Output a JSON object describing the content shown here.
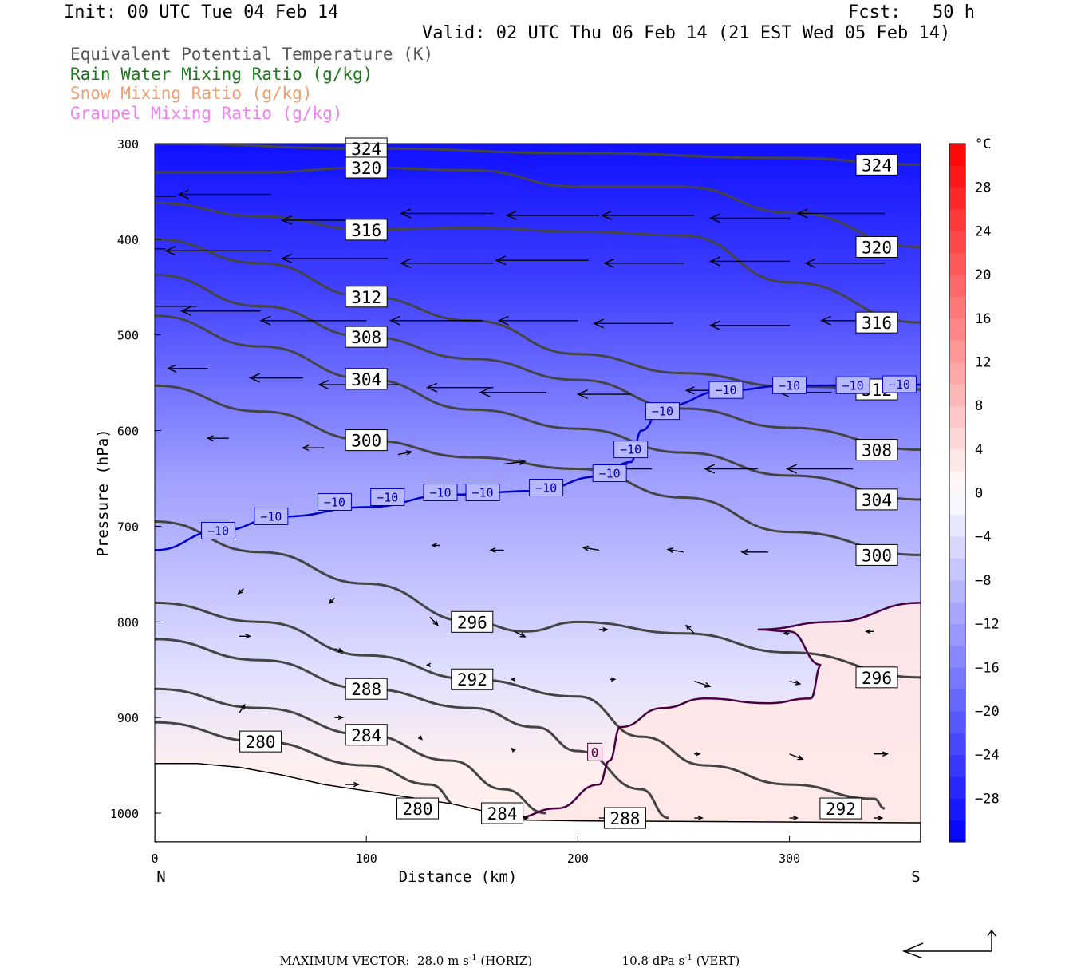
{
  "header": {
    "init": "Init: 00 UTC Tue 04 Feb 14",
    "fcst": "Fcst:   50 h",
    "valid": "Valid: 02 UTC Thu 06 Feb 14 (21 EST Wed 05 Feb 14)"
  },
  "legend": [
    {
      "label": "Equivalent Potential Temperature (K)",
      "color": "#555555"
    },
    {
      "label": "Rain Water Mixing Ratio (g/kg)",
      "color": "#1a7a1a"
    },
    {
      "label": "Snow Mixing Ratio (g/kg)",
      "color": "#f0a070"
    },
    {
      "label": "Graupel Mixing Ratio (g/kg)",
      "color": "#ee82ee"
    }
  ],
  "footer": {
    "max_vector_label": "MAXIMUM VECTOR:",
    "horiz_value": "28.0",
    "horiz_units": "m s",
    "horiz_tag": "(HORIZ)",
    "vert_value": "10.8",
    "vert_units": "dPa s",
    "vert_tag": "(VERT)",
    "exponent": "-1"
  },
  "chart_data": {
    "type": "cross-section",
    "xlabel": "Distance (km)",
    "ylabel": "Pressure (hPa)",
    "xlim": [
      0,
      362
    ],
    "ylim": [
      1030,
      300
    ],
    "x_ticks": [
      0,
      100,
      200,
      300
    ],
    "y_ticks": [
      300,
      400,
      500,
      600,
      700,
      800,
      900,
      1000
    ],
    "x_end_labels": {
      "left": "N",
      "right": "S"
    },
    "colorbar": {
      "unit": "°C",
      "ticks": [
        28,
        24,
        20,
        16,
        12,
        8,
        4,
        0,
        -4,
        -8,
        -12,
        -16,
        -20,
        -24,
        -28
      ],
      "range": [
        -32,
        32
      ],
      "colors": {
        "cold": "#0000ff",
        "neutral": "#ffffff",
        "warm": "#ff0000"
      }
    },
    "temperature_field": [
      {
        "p": 300,
        "t": -30
      },
      {
        "p": 450,
        "t": -24
      },
      {
        "p": 550,
        "t": -18
      },
      {
        "p": 650,
        "t": -12
      },
      {
        "p": 750,
        "t": -8
      },
      {
        "p": 850,
        "t": -4
      },
      {
        "p": 950,
        "t": 2
      }
    ],
    "theta_e_contours": [
      {
        "value": 324,
        "points": [
          [
            0,
            300
          ],
          [
            100,
            305
          ],
          [
            200,
            310
          ],
          [
            300,
            315
          ],
          [
            362,
            322
          ]
        ]
      },
      {
        "value": 320,
        "points": [
          [
            0,
            330
          ],
          [
            50,
            330
          ],
          [
            100,
            325
          ],
          [
            150,
            328
          ],
          [
            200,
            345
          ],
          [
            250,
            345
          ],
          [
            300,
            372
          ],
          [
            362,
            408
          ]
        ]
      },
      {
        "value": 316,
        "points": [
          [
            0,
            362
          ],
          [
            50,
            376
          ],
          [
            100,
            390
          ],
          [
            150,
            388
          ],
          [
            200,
            392
          ],
          [
            250,
            396
          ],
          [
            300,
            445
          ],
          [
            362,
            487
          ]
        ]
      },
      {
        "value": 312,
        "points": [
          [
            0,
            400
          ],
          [
            50,
            425
          ],
          [
            100,
            460
          ],
          [
            150,
            485
          ],
          [
            200,
            520
          ],
          [
            250,
            540
          ],
          [
            300,
            554
          ],
          [
            362,
            557
          ]
        ]
      },
      {
        "value": 308,
        "points": [
          [
            0,
            437
          ],
          [
            50,
            470
          ],
          [
            100,
            502
          ],
          [
            150,
            525
          ],
          [
            200,
            547
          ],
          [
            250,
            577
          ],
          [
            300,
            597
          ],
          [
            362,
            620
          ]
        ]
      },
      {
        "value": 304,
        "points": [
          [
            0,
            480
          ],
          [
            50,
            512
          ],
          [
            100,
            546
          ],
          [
            150,
            578
          ],
          [
            200,
            598
          ],
          [
            250,
            623
          ],
          [
            300,
            647
          ],
          [
            362,
            672
          ]
        ]
      },
      {
        "value": 300,
        "points": [
          [
            0,
            553
          ],
          [
            50,
            580
          ],
          [
            100,
            610
          ],
          [
            150,
            628
          ],
          [
            200,
            640
          ],
          [
            250,
            670
          ],
          [
            300,
            706
          ],
          [
            362,
            730
          ]
        ]
      },
      {
        "value": 296,
        "points": [
          [
            0,
            695
          ],
          [
            50,
            727
          ],
          [
            100,
            760
          ],
          [
            150,
            800
          ],
          [
            175,
            810
          ],
          [
            200,
            800
          ],
          [
            250,
            812
          ],
          [
            300,
            832
          ],
          [
            362,
            858
          ]
        ]
      },
      {
        "value": 292,
        "points": [
          [
            0,
            780
          ],
          [
            50,
            800
          ],
          [
            100,
            835
          ],
          [
            150,
            860
          ],
          [
            200,
            878
          ],
          [
            230,
            920
          ],
          [
            260,
            950
          ],
          [
            300,
            970
          ],
          [
            340,
            985
          ],
          [
            345,
            995
          ]
        ]
      },
      {
        "value": 288,
        "points": [
          [
            0,
            818
          ],
          [
            50,
            840
          ],
          [
            100,
            870
          ],
          [
            150,
            890
          ],
          [
            180,
            910
          ],
          [
            200,
            935
          ],
          [
            230,
            975
          ],
          [
            243,
            1005
          ]
        ]
      },
      {
        "value": 284,
        "points": [
          [
            0,
            870
          ],
          [
            50,
            890
          ],
          [
            100,
            918
          ],
          [
            140,
            945
          ],
          [
            165,
            975
          ],
          [
            185,
            1000
          ]
        ]
      },
      {
        "value": 280,
        "points": [
          [
            0,
            905
          ],
          [
            50,
            925
          ],
          [
            100,
            950
          ],
          [
            130,
            970
          ],
          [
            145,
            995
          ]
        ]
      }
    ],
    "isotherm_minus10": {
      "value": -10,
      "points": [
        [
          0,
          725
        ],
        [
          30,
          705
        ],
        [
          60,
          690
        ],
        [
          100,
          680
        ],
        [
          140,
          667
        ],
        [
          180,
          663
        ],
        [
          210,
          648
        ],
        [
          225,
          633
        ],
        [
          230,
          600
        ],
        [
          240,
          575
        ],
        [
          270,
          558
        ],
        [
          300,
          553
        ],
        [
          362,
          552
        ]
      ],
      "label_positions": [
        [
          30,
          705
        ],
        [
          55,
          690
        ],
        [
          85,
          675
        ],
        [
          110,
          670
        ],
        [
          135,
          665
        ],
        [
          155,
          665
        ],
        [
          185,
          660
        ],
        [
          215,
          645
        ],
        [
          225,
          620
        ],
        [
          240,
          580
        ],
        [
          270,
          558
        ],
        [
          300,
          553
        ],
        [
          330,
          553
        ],
        [
          352,
          552
        ]
      ]
    },
    "isotherm_zero": {
      "value": 0,
      "points": [
        [
          170,
          1005
        ],
        [
          190,
          995
        ],
        [
          210,
          970
        ],
        [
          215,
          945
        ],
        [
          220,
          910
        ],
        [
          240,
          890
        ],
        [
          260,
          880
        ],
        [
          290,
          885
        ],
        [
          310,
          880
        ],
        [
          315,
          845
        ],
        [
          300,
          810
        ],
        [
          285,
          808
        ],
        [
          320,
          800
        ],
        [
          362,
          780
        ]
      ],
      "label_position": [
        208,
        936
      ]
    },
    "vectors": [
      {
        "x": 10,
        "p": 355,
        "u": -30,
        "w": 0
      },
      {
        "x": 55,
        "p": 353,
        "u": -35,
        "w": 0
      },
      {
        "x": 110,
        "p": 380,
        "u": -40,
        "w": 0
      },
      {
        "x": 160,
        "p": 373,
        "u": -35,
        "w": 0
      },
      {
        "x": 210,
        "p": 375,
        "u": -35,
        "w": 0
      },
      {
        "x": 255,
        "p": 375,
        "u": -35,
        "w": 0
      },
      {
        "x": 300,
        "p": 378,
        "u": -30,
        "w": 0
      },
      {
        "x": 345,
        "p": 373,
        "u": -33,
        "w": 0
      },
      {
        "x": 5,
        "p": 410,
        "u": -35,
        "w": 0
      },
      {
        "x": 55,
        "p": 412,
        "u": -40,
        "w": 0
      },
      {
        "x": 110,
        "p": 420,
        "u": -40,
        "w": 0
      },
      {
        "x": 160,
        "p": 425,
        "u": -35,
        "w": 0
      },
      {
        "x": 205,
        "p": 422,
        "u": -35,
        "w": 0
      },
      {
        "x": 250,
        "p": 425,
        "u": -30,
        "w": 0
      },
      {
        "x": 300,
        "p": 423,
        "u": -30,
        "w": 0
      },
      {
        "x": 345,
        "p": 425,
        "u": -30,
        "w": 0
      },
      {
        "x": 20,
        "p": 470,
        "u": -25,
        "w": 0
      },
      {
        "x": 50,
        "p": 475,
        "u": -30,
        "w": 0
      },
      {
        "x": 100,
        "p": 485,
        "u": -40,
        "w": 0
      },
      {
        "x": 155,
        "p": 485,
        "u": -35,
        "w": 0
      },
      {
        "x": 200,
        "p": 485,
        "u": -30,
        "w": 0
      },
      {
        "x": 245,
        "p": 488,
        "u": -30,
        "w": 0
      },
      {
        "x": 300,
        "p": 490,
        "u": -30,
        "w": 0
      },
      {
        "x": 340,
        "p": 485,
        "u": -20,
        "w": 0
      },
      {
        "x": 25,
        "p": 535,
        "u": -15,
        "w": 0
      },
      {
        "x": 70,
        "p": 545,
        "u": -20,
        "w": 0
      },
      {
        "x": 115,
        "p": 552,
        "u": -30,
        "w": 0
      },
      {
        "x": 160,
        "p": 555,
        "u": -25,
        "w": 0
      },
      {
        "x": 185,
        "p": 560,
        "u": -25,
        "w": 0
      },
      {
        "x": 225,
        "p": 562,
        "u": -20,
        "w": 0
      },
      {
        "x": 270,
        "p": 558,
        "u": -15,
        "w": 0
      },
      {
        "x": 320,
        "p": 560,
        "u": -20,
        "w": 0
      },
      {
        "x": 35,
        "p": 608,
        "u": -8,
        "w": 0
      },
      {
        "x": 80,
        "p": 618,
        "u": -8,
        "w": 0
      },
      {
        "x": 115,
        "p": 625,
        "u": 5,
        "w": 1
      },
      {
        "x": 165,
        "p": 635,
        "u": 8,
        "w": 1
      },
      {
        "x": 235,
        "p": 640,
        "u": -20,
        "w": 0
      },
      {
        "x": 285,
        "p": 640,
        "u": -20,
        "w": 0
      },
      {
        "x": 330,
        "p": 640,
        "u": -25,
        "w": 0
      },
      {
        "x": 135,
        "p": 720,
        "u": -3,
        "w": 0
      },
      {
        "x": 165,
        "p": 725,
        "u": -5,
        "w": 0
      },
      {
        "x": 210,
        "p": 725,
        "u": -6,
        "w": 1
      },
      {
        "x": 250,
        "p": 727,
        "u": -6,
        "w": 1
      },
      {
        "x": 290,
        "p": 727,
        "u": -10,
        "w": 0
      },
      {
        "x": 42,
        "p": 765,
        "u": -2,
        "w": -2
      },
      {
        "x": 85,
        "p": 775,
        "u": -2,
        "w": -2
      },
      {
        "x": 130,
        "p": 795,
        "u": 3,
        "w": -3
      },
      {
        "x": 170,
        "p": 810,
        "u": 4,
        "w": -2
      },
      {
        "x": 210,
        "p": 808,
        "u": 3,
        "w": 0
      },
      {
        "x": 255,
        "p": 812,
        "u": -3,
        "w": 3
      },
      {
        "x": 300,
        "p": 812,
        "u": -2,
        "w": 0
      },
      {
        "x": 340,
        "p": 810,
        "u": -3,
        "w": 0
      },
      {
        "x": 40,
        "p": 815,
        "u": 4,
        "w": 0
      },
      {
        "x": 85,
        "p": 828,
        "u": 3,
        "w": -1
      },
      {
        "x": 130,
        "p": 845,
        "u": -1,
        "w": 0
      },
      {
        "x": 170,
        "p": 860,
        "u": -1,
        "w": 0
      },
      {
        "x": 215,
        "p": 860,
        "u": 2,
        "w": 0
      },
      {
        "x": 255,
        "p": 862,
        "u": 6,
        "w": -2
      },
      {
        "x": 300,
        "p": 862,
        "u": 4,
        "w": -1
      },
      {
        "x": 40,
        "p": 895,
        "u": 2,
        "w": 3
      },
      {
        "x": 85,
        "p": 900,
        "u": 3,
        "w": 0
      },
      {
        "x": 125,
        "p": 920,
        "u": 1,
        "w": -1
      },
      {
        "x": 170,
        "p": 935,
        "u": -1,
        "w": 1
      },
      {
        "x": 255,
        "p": 938,
        "u": 2,
        "w": 0
      },
      {
        "x": 300,
        "p": 938,
        "u": 5,
        "w": -2
      },
      {
        "x": 340,
        "p": 938,
        "u": 5,
        "w": 0
      },
      {
        "x": 5,
        "p": 950,
        "u": 5,
        "w": 0
      },
      {
        "x": 45,
        "p": 960,
        "u": 5,
        "w": 0
      },
      {
        "x": 90,
        "p": 970,
        "u": 5,
        "w": 0
      },
      {
        "x": 130,
        "p": 990,
        "u": 5,
        "w": 0
      },
      {
        "x": 170,
        "p": 1005,
        "u": 5,
        "w": 0
      },
      {
        "x": 210,
        "p": 1005,
        "u": 4,
        "w": 0
      },
      {
        "x": 255,
        "p": 1005,
        "u": 3,
        "w": 0
      },
      {
        "x": 300,
        "p": 1005,
        "u": 3,
        "w": 0
      },
      {
        "x": 340,
        "p": 1005,
        "u": 3,
        "w": 0
      }
    ],
    "terrain": [
      [
        0,
        948
      ],
      [
        20,
        948
      ],
      [
        40,
        952
      ],
      [
        60,
        960
      ],
      [
        80,
        970
      ],
      [
        110,
        980
      ],
      [
        140,
        990
      ],
      [
        160,
        1000
      ],
      [
        170,
        1007
      ],
      [
        200,
        1008
      ],
      [
        362,
        1010
      ]
    ]
  }
}
